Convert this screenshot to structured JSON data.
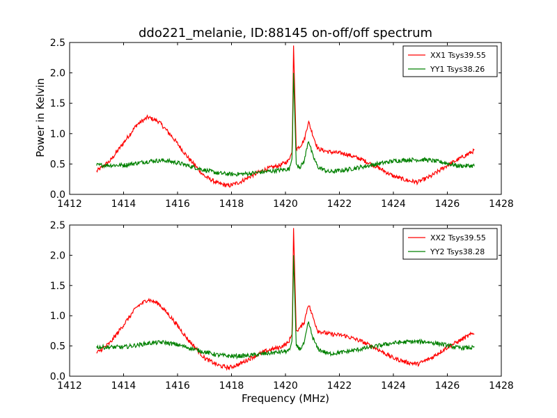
{
  "figure": {
    "title": "ddo221_melanie, ID:88145 on-off/off spectrum",
    "ylabel": "Power in Kelvin",
    "xlabel": "Frequency (MHz)"
  },
  "chart_data": [
    {
      "type": "line",
      "xlim": [
        1412,
        1428
      ],
      "ylim": [
        0.0,
        2.5
      ],
      "xticks": [
        "1412",
        "1414",
        "1416",
        "1418",
        "1420",
        "1422",
        "1424",
        "1426",
        "1428"
      ],
      "yticks": [
        "0.0",
        "0.5",
        "1.0",
        "1.5",
        "2.0",
        "2.5"
      ],
      "grid": false,
      "legend_position": "top-right",
      "series": [
        {
          "name": "XX1 Tsys39.55",
          "color": "#ff0000",
          "points": [
            [
              1413.0,
              0.38
            ],
            [
              1413.5,
              0.55
            ],
            [
              1414.0,
              0.85
            ],
            [
              1414.5,
              1.15
            ],
            [
              1414.9,
              1.27
            ],
            [
              1415.3,
              1.2
            ],
            [
              1415.8,
              0.95
            ],
            [
              1416.4,
              0.6
            ],
            [
              1417.0,
              0.3
            ],
            [
              1417.5,
              0.18
            ],
            [
              1417.9,
              0.14
            ],
            [
              1418.3,
              0.2
            ],
            [
              1418.8,
              0.32
            ],
            [
              1419.3,
              0.42
            ],
            [
              1419.8,
              0.48
            ],
            [
              1420.1,
              0.55
            ],
            [
              1420.25,
              0.7
            ],
            [
              1420.3,
              2.45
            ],
            [
              1420.4,
              0.75
            ],
            [
              1420.55,
              0.8
            ],
            [
              1420.7,
              0.9
            ],
            [
              1420.85,
              1.2
            ],
            [
              1421.0,
              1.0
            ],
            [
              1421.2,
              0.75
            ],
            [
              1421.6,
              0.7
            ],
            [
              1422.2,
              0.67
            ],
            [
              1422.8,
              0.58
            ],
            [
              1423.4,
              0.45
            ],
            [
              1424.0,
              0.3
            ],
            [
              1424.5,
              0.23
            ],
            [
              1424.9,
              0.2
            ],
            [
              1425.4,
              0.3
            ],
            [
              1425.9,
              0.45
            ],
            [
              1426.5,
              0.6
            ],
            [
              1427.0,
              0.72
            ]
          ]
        },
        {
          "name": "YY1 Tsys38.26",
          "color": "#008000",
          "points": [
            [
              1413.0,
              0.48
            ],
            [
              1414.0,
              0.48
            ],
            [
              1415.0,
              0.55
            ],
            [
              1415.5,
              0.56
            ],
            [
              1416.0,
              0.52
            ],
            [
              1416.5,
              0.46
            ],
            [
              1417.0,
              0.4
            ],
            [
              1417.5,
              0.35
            ],
            [
              1418.0,
              0.33
            ],
            [
              1418.6,
              0.34
            ],
            [
              1419.2,
              0.37
            ],
            [
              1419.8,
              0.4
            ],
            [
              1420.15,
              0.42
            ],
            [
              1420.25,
              0.6
            ],
            [
              1420.3,
              2.0
            ],
            [
              1420.4,
              0.5
            ],
            [
              1420.55,
              0.45
            ],
            [
              1420.7,
              0.55
            ],
            [
              1420.85,
              0.9
            ],
            [
              1421.0,
              0.65
            ],
            [
              1421.2,
              0.45
            ],
            [
              1421.6,
              0.37
            ],
            [
              1422.2,
              0.4
            ],
            [
              1422.8,
              0.45
            ],
            [
              1423.4,
              0.5
            ],
            [
              1424.0,
              0.55
            ],
            [
              1424.6,
              0.57
            ],
            [
              1425.2,
              0.57
            ],
            [
              1425.8,
              0.53
            ],
            [
              1426.4,
              0.47
            ],
            [
              1427.0,
              0.47
            ]
          ]
        }
      ]
    },
    {
      "type": "line",
      "xlim": [
        1412,
        1428
      ],
      "ylim": [
        0.0,
        2.5
      ],
      "xticks": [
        "1412",
        "1414",
        "1416",
        "1418",
        "1420",
        "1422",
        "1424",
        "1426",
        "1428"
      ],
      "yticks": [
        "0.0",
        "0.5",
        "1.0",
        "1.5",
        "2.0",
        "2.5"
      ],
      "grid": false,
      "legend_position": "top-right",
      "series": [
        {
          "name": "XX2 Tsys39.55",
          "color": "#ff0000",
          "points": [
            [
              1413.0,
              0.38
            ],
            [
              1413.5,
              0.55
            ],
            [
              1414.0,
              0.85
            ],
            [
              1414.5,
              1.15
            ],
            [
              1414.9,
              1.27
            ],
            [
              1415.3,
              1.2
            ],
            [
              1415.8,
              0.95
            ],
            [
              1416.4,
              0.6
            ],
            [
              1417.0,
              0.3
            ],
            [
              1417.5,
              0.18
            ],
            [
              1417.9,
              0.14
            ],
            [
              1418.3,
              0.2
            ],
            [
              1418.8,
              0.32
            ],
            [
              1419.3,
              0.42
            ],
            [
              1419.8,
              0.48
            ],
            [
              1420.1,
              0.55
            ],
            [
              1420.25,
              0.7
            ],
            [
              1420.3,
              2.45
            ],
            [
              1420.4,
              0.75
            ],
            [
              1420.55,
              0.8
            ],
            [
              1420.7,
              0.9
            ],
            [
              1420.85,
              1.2
            ],
            [
              1421.0,
              1.0
            ],
            [
              1421.2,
              0.75
            ],
            [
              1421.6,
              0.7
            ],
            [
              1422.2,
              0.67
            ],
            [
              1422.8,
              0.58
            ],
            [
              1423.4,
              0.45
            ],
            [
              1424.0,
              0.3
            ],
            [
              1424.5,
              0.23
            ],
            [
              1424.9,
              0.2
            ],
            [
              1425.4,
              0.3
            ],
            [
              1425.9,
              0.45
            ],
            [
              1426.5,
              0.6
            ],
            [
              1427.0,
              0.72
            ]
          ]
        },
        {
          "name": "YY2 Tsys38.28",
          "color": "#008000",
          "points": [
            [
              1413.0,
              0.48
            ],
            [
              1414.0,
              0.48
            ],
            [
              1415.0,
              0.55
            ],
            [
              1415.5,
              0.56
            ],
            [
              1416.0,
              0.52
            ],
            [
              1416.5,
              0.46
            ],
            [
              1417.0,
              0.4
            ],
            [
              1417.5,
              0.35
            ],
            [
              1418.0,
              0.33
            ],
            [
              1418.6,
              0.34
            ],
            [
              1419.2,
              0.37
            ],
            [
              1419.8,
              0.4
            ],
            [
              1420.15,
              0.42
            ],
            [
              1420.25,
              0.6
            ],
            [
              1420.3,
              2.0
            ],
            [
              1420.4,
              0.5
            ],
            [
              1420.55,
              0.45
            ],
            [
              1420.7,
              0.55
            ],
            [
              1420.85,
              0.9
            ],
            [
              1421.0,
              0.65
            ],
            [
              1421.2,
              0.45
            ],
            [
              1421.6,
              0.37
            ],
            [
              1422.2,
              0.4
            ],
            [
              1422.8,
              0.45
            ],
            [
              1423.4,
              0.5
            ],
            [
              1424.0,
              0.55
            ],
            [
              1424.6,
              0.57
            ],
            [
              1425.2,
              0.57
            ],
            [
              1425.8,
              0.53
            ],
            [
              1426.4,
              0.47
            ],
            [
              1427.0,
              0.47
            ]
          ]
        }
      ]
    }
  ]
}
